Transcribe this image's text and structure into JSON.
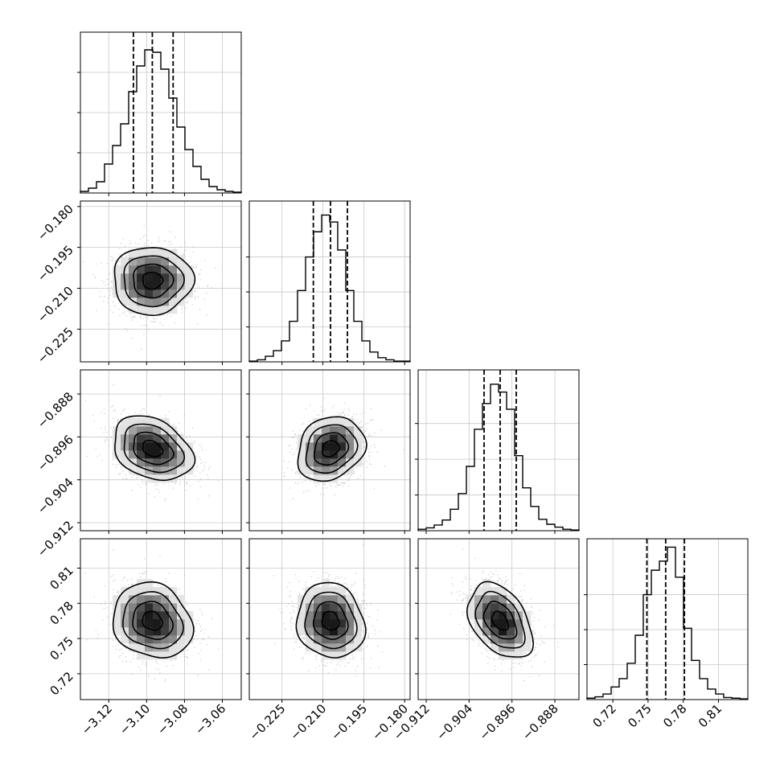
{
  "chart_data": {
    "type": "corner",
    "grid": true,
    "parameters": [
      {
        "range": [
          -3.135,
          -3.05
        ],
        "ticks": [
          -3.12,
          -3.1,
          -3.08,
          -3.06
        ],
        "tick_labels": [
          "−3.12",
          "−3.10",
          "−3.08",
          "−3.06"
        ],
        "quantiles": [
          -3.107,
          -3.097,
          -3.086
        ],
        "hist": {
          "edges_start": -3.135,
          "bin_width": 0.00425,
          "counts": [
            2,
            6,
            14,
            36,
            59,
            86,
            126,
            158,
            178,
            175,
            154,
            118,
            82,
            54,
            33,
            17,
            8,
            4,
            2,
            1
          ]
        },
        "hist_ticks": [
          50,
          100,
          150
        ],
        "hist_max": 200
      },
      {
        "range": [
          -0.237,
          -0.178
        ],
        "ticks": [
          -0.225,
          -0.21,
          -0.195,
          -0.18
        ],
        "tick_labels": [
          "−0.225",
          "−0.210",
          "−0.195",
          "−0.180"
        ],
        "quantiles": [
          -0.2135,
          -0.2072,
          -0.201
        ],
        "hist": {
          "edges_start": -0.237,
          "bin_width": 0.00295,
          "counts": [
            1,
            3,
            8,
            16,
            30,
            58,
            102,
            150,
            186,
            210,
            200,
            160,
            102,
            58,
            30,
            14,
            6,
            3,
            1,
            1
          ]
        },
        "hist_ticks": [
          50,
          100,
          150
        ],
        "hist_max": 230
      },
      {
        "range": [
          -0.9135,
          -0.8835
        ],
        "ticks": [
          -0.912,
          -0.904,
          -0.896,
          -0.888
        ],
        "tick_labels": [
          "−0.912",
          "−0.904",
          "−0.896",
          "−0.888"
        ],
        "quantiles": [
          -0.9012,
          -0.8982,
          -0.8952
        ],
        "hist": {
          "edges_start": -0.9135,
          "bin_width": 0.0015,
          "counts": [
            2,
            4,
            8,
            15,
            30,
            52,
            90,
            142,
            178,
            205,
            194,
            170,
            105,
            60,
            34,
            16,
            9,
            5,
            2,
            1
          ]
        },
        "hist_ticks": [
          50,
          100,
          150
        ],
        "hist_max": 225
      },
      {
        "range": [
          0.698,
          0.835
        ],
        "ticks": [
          0.72,
          0.75,
          0.78,
          0.81
        ],
        "tick_labels": [
          "0.72",
          "0.75",
          "0.78",
          "0.81"
        ],
        "quantiles": [
          0.749,
          0.765,
          0.781
        ],
        "hist": {
          "edges_start": 0.698,
          "bin_width": 0.00685,
          "counts": [
            2,
            4,
            8,
            18,
            30,
            52,
            92,
            150,
            185,
            198,
            218,
            175,
            102,
            56,
            30,
            15,
            8,
            3,
            2,
            1
          ]
        },
        "hist_ticks": [
          50,
          100,
          150
        ],
        "hist_max": 230
      }
    ],
    "pairs": [
      {
        "row": 1,
        "col": 0,
        "mean": [
          -3.097,
          -0.2072
        ],
        "sd": [
          0.0105,
          0.0062
        ],
        "corr": 0.0
      },
      {
        "row": 2,
        "col": 0,
        "mean": [
          -3.097,
          -0.8982
        ],
        "sd": [
          0.0105,
          0.003
        ],
        "corr": -0.3
      },
      {
        "row": 2,
        "col": 1,
        "mean": [
          -0.2072,
          -0.8982
        ],
        "sd": [
          0.0062,
          0.003
        ],
        "corr": 0.2
      },
      {
        "row": 3,
        "col": 0,
        "mean": [
          -3.097,
          0.765
        ],
        "sd": [
          0.0105,
          0.016
        ],
        "corr": -0.15
      },
      {
        "row": 3,
        "col": 1,
        "mean": [
          -0.2072,
          0.765
        ],
        "sd": [
          0.0062,
          0.016
        ],
        "corr": -0.1
      },
      {
        "row": 3,
        "col": 2,
        "mean": [
          -0.8982,
          0.765
        ],
        "sd": [
          0.003,
          0.016
        ],
        "corr": -0.4
      }
    ],
    "contour_levels_sigma": [
      0.5,
      1.0,
      1.5,
      2.0
    ]
  }
}
